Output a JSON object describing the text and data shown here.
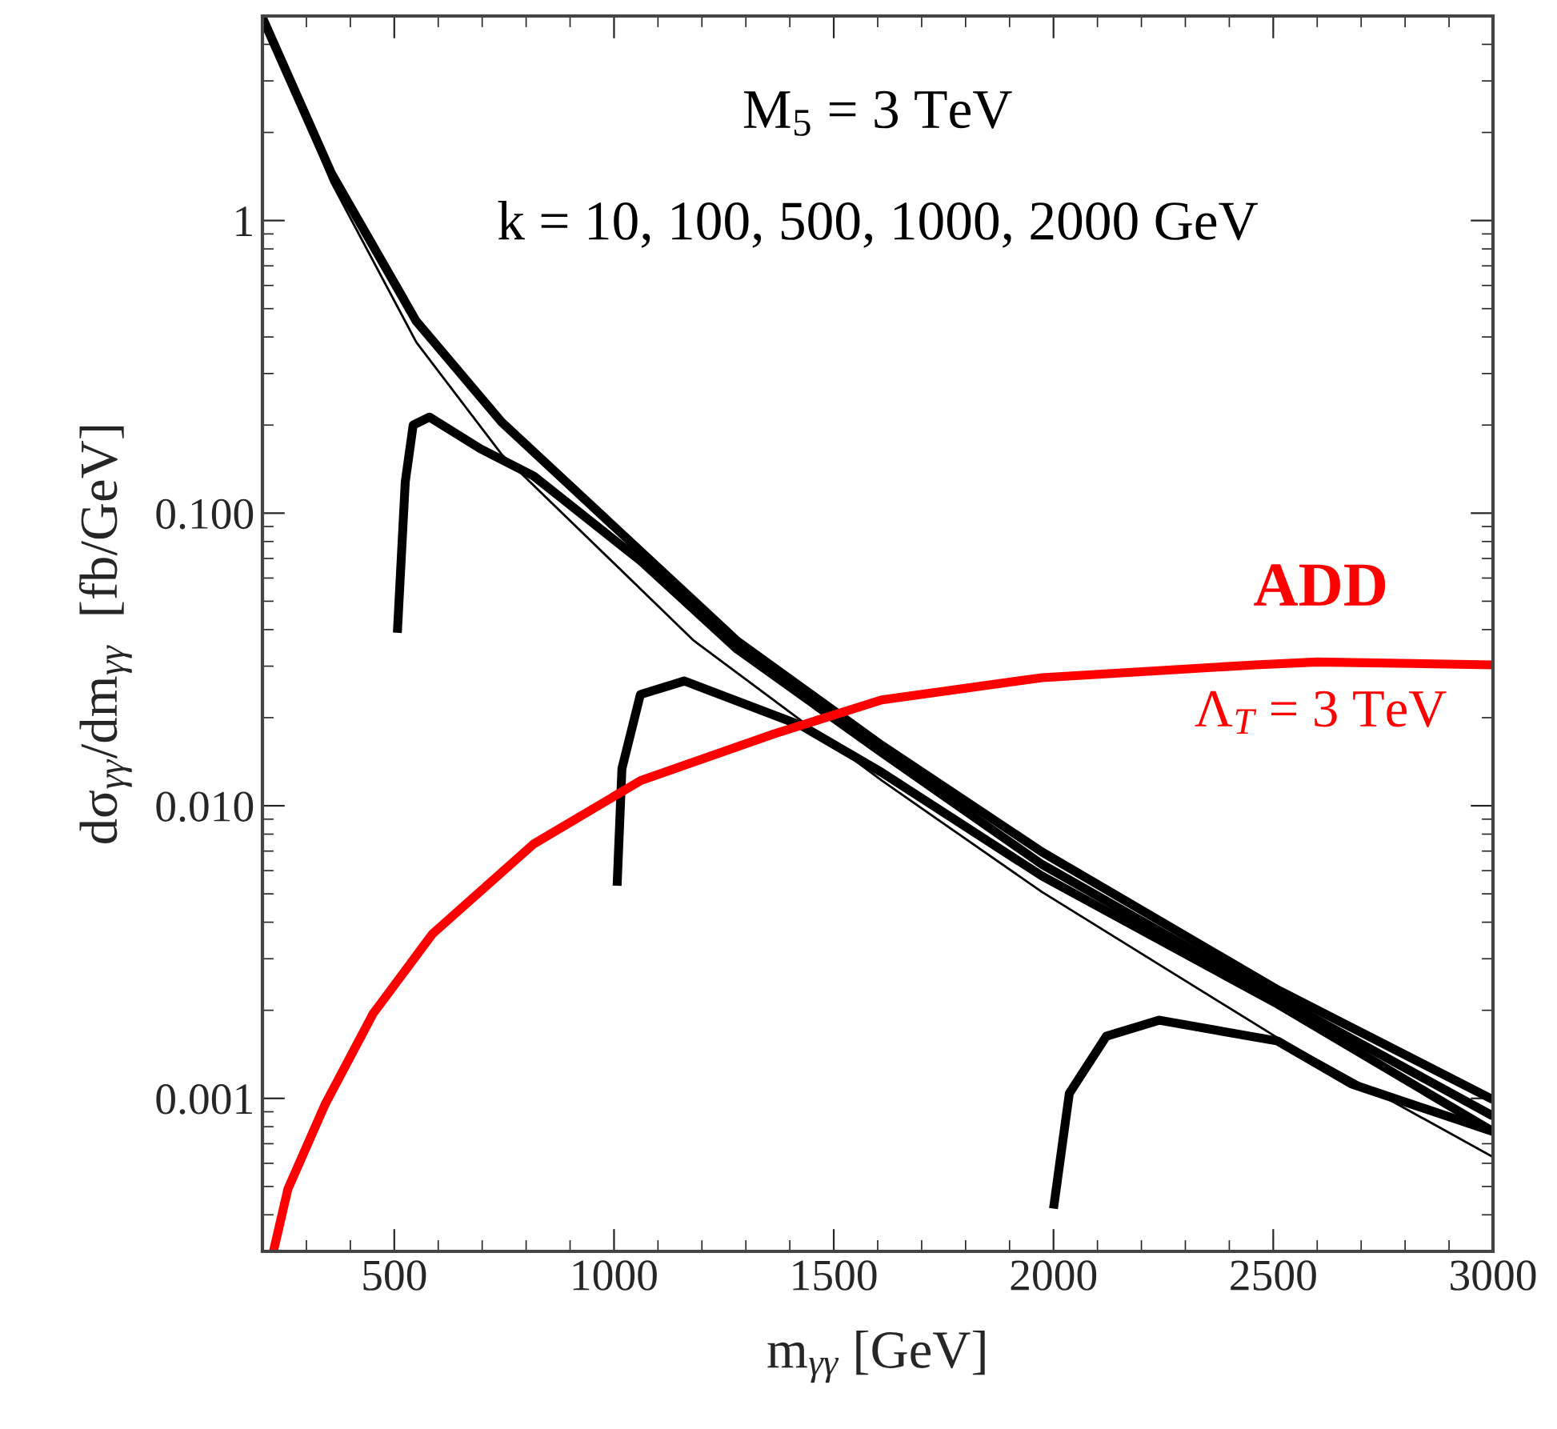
{
  "chart_data": {
    "type": "line",
    "xlabel": "m$_{γγ}$ [GeV]",
    "ylabel": "dσ$_{γγ}$/dm$_{γγ}$  [fb/GeV]",
    "log": "y",
    "xlim": [
      200,
      3000
    ],
    "xticks": [
      500,
      1000,
      1500,
      2000,
      2500,
      3000
    ],
    "ylim": [
      0.0003,
      5
    ],
    "yticks": [
      1,
      {
        "value": 0.1,
        "label": "0.100"
      },
      {
        "value": 0.01,
        "label": "0.010"
      },
      {
        "value": 0.001,
        "label": "0.001"
      }
    ],
    "grid": false,
    "legend": false,
    "annotations": [
      "M$_{5}$ = 3 TeV",
      "k = 10, 100, 500, 1000, 2000 GeV",
      "ADD",
      "Λ$_{T}$ = 3 TeV"
    ],
    "series": [
      {
        "color": "#000000",
        "x": [
          200,
          357,
          550,
          744,
          1182,
          1609,
          1974,
          2510,
          3000
        ],
        "values": [
          4.94,
          1.35,
          0.384,
          0.159,
          0.0366,
          0.0122,
          0.00507,
          0.00161,
          0.00063
        ]
      },
      {
        "color": "#000000",
        "x": [
          200,
          357,
          550,
          744,
          1280,
          1609,
          1974,
          2510,
          3000
        ],
        "values": [
          4.94,
          1.45,
          0.453,
          0.205,
          0.0366,
          0.0161,
          0.00695,
          0.00235,
          0.00099
        ]
      },
      {
        "color": "#000000",
        "x": [
          507,
          525,
          543,
          580,
          696,
          817,
          1061,
          1280,
          1609,
          1974,
          2510,
          3000
        ],
        "values": [
          0.039,
          0.128,
          0.2,
          0.213,
          0.166,
          0.134,
          0.0686,
          0.0343,
          0.0152,
          0.0063,
          0.0022,
          0.00087
        ]
      },
      {
        "color": "#000000",
        "x": [
          1007,
          1018,
          1060,
          1160,
          1426,
          1609,
          1974,
          2510,
          3000
        ],
        "values": [
          0.00533,
          0.0134,
          0.024,
          0.0267,
          0.0188,
          0.013,
          0.00575,
          0.0021,
          0.00077
        ]
      },
      {
        "color": "#000000",
        "x": [
          2000,
          2036,
          2120,
          2240,
          2510,
          2678,
          3000
        ],
        "values": [
          0.00042,
          0.00104,
          0.00163,
          0.00185,
          0.00157,
          0.00112,
          0.00077
        ]
      },
      {
        "color": "#ff0000",
        "x": [
          225,
          258,
          342,
          452,
          587,
          817,
          1061,
          1364,
          1609,
          1974,
          2459,
          2600,
          3000
        ],
        "values": [
          0.0003,
          0.00049,
          0.00095,
          0.00195,
          0.00365,
          0.0074,
          0.0122,
          0.0176,
          0.023,
          0.0274,
          0.0303,
          0.031,
          0.0303
        ]
      }
    ]
  }
}
